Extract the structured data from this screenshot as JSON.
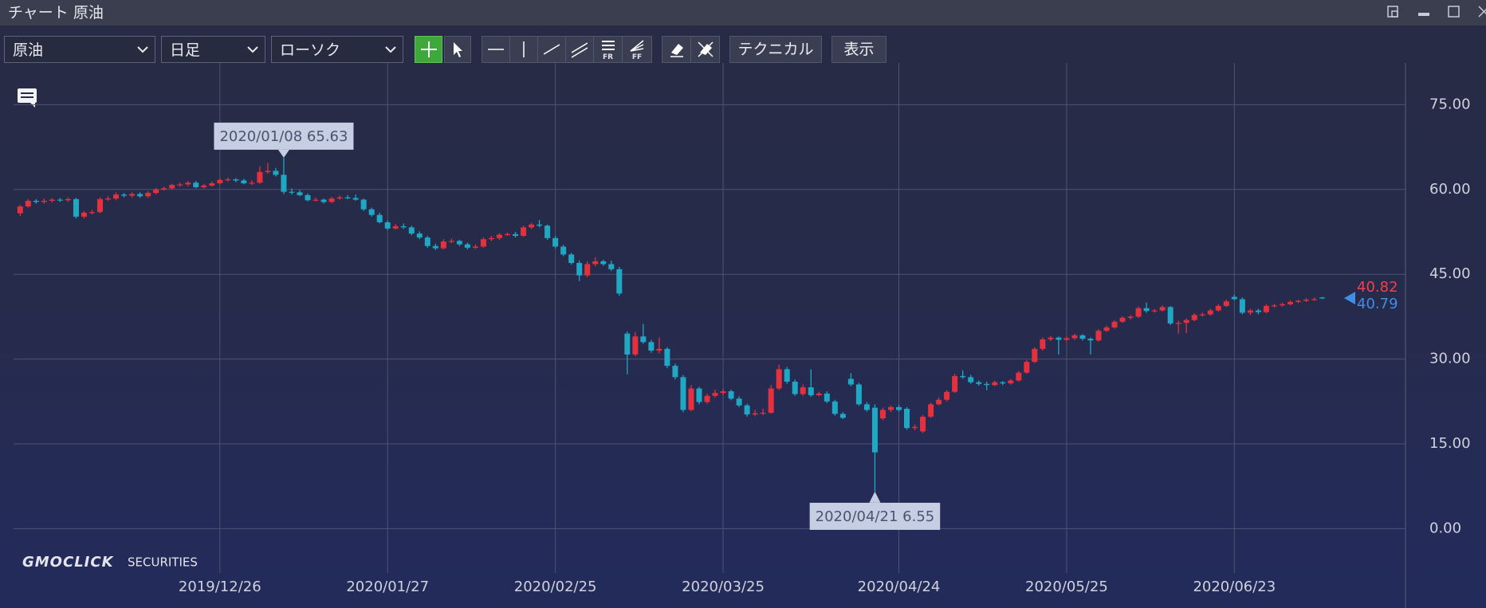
{
  "window": {
    "title": "チャート 原油"
  },
  "toolbar": {
    "symbol": "原油",
    "period": "日足",
    "chart_style": "ローソク",
    "fibo_labels": [
      "FR",
      "FF"
    ],
    "technical": "テクニカル",
    "display": "表示"
  },
  "logo": {
    "brand": "GMOCLICK",
    "suffix": "SECURITIES"
  },
  "chart_data": {
    "type": "candlestick",
    "categories": [
      "2019/11/20",
      "2019/11/21",
      "2019/11/22",
      "2019/11/25",
      "2019/11/26",
      "2019/11/27",
      "2019/11/28",
      "2019/11/29",
      "2019/12/02",
      "2019/12/03",
      "2019/12/04",
      "2019/12/05",
      "2019/12/06",
      "2019/12/09",
      "2019/12/10",
      "2019/12/11",
      "2019/12/12",
      "2019/12/13",
      "2019/12/16",
      "2019/12/17",
      "2019/12/18",
      "2019/12/19",
      "2019/12/20",
      "2019/12/23",
      "2019/12/24",
      "2019/12/26",
      "2019/12/27",
      "2019/12/30",
      "2019/12/31",
      "2020/01/02",
      "2020/01/03",
      "2020/01/06",
      "2020/01/07",
      "2020/01/08",
      "2020/01/09",
      "2020/01/10",
      "2020/01/13",
      "2020/01/14",
      "2020/01/15",
      "2020/01/16",
      "2020/01/17",
      "2020/01/20",
      "2020/01/21",
      "2020/01/22",
      "2020/01/23",
      "2020/01/24",
      "2020/01/27",
      "2020/01/28",
      "2020/01/29",
      "2020/01/30",
      "2020/01/31",
      "2020/02/03",
      "2020/02/04",
      "2020/02/05",
      "2020/02/06",
      "2020/02/07",
      "2020/02/10",
      "2020/02/11",
      "2020/02/12",
      "2020/02/13",
      "2020/02/14",
      "2020/02/17",
      "2020/02/18",
      "2020/02/19",
      "2020/02/20",
      "2020/02/21",
      "2020/02/24",
      "2020/02/25",
      "2020/02/26",
      "2020/02/27",
      "2020/02/28",
      "2020/03/02",
      "2020/03/03",
      "2020/03/04",
      "2020/03/05",
      "2020/03/06",
      "2020/03/09",
      "2020/03/10",
      "2020/03/11",
      "2020/03/12",
      "2020/03/13",
      "2020/03/16",
      "2020/03/17",
      "2020/03/18",
      "2020/03/19",
      "2020/03/20",
      "2020/03/23",
      "2020/03/24",
      "2020/03/25",
      "2020/03/26",
      "2020/03/27",
      "2020/03/30",
      "2020/03/31",
      "2020/04/01",
      "2020/04/02",
      "2020/04/03",
      "2020/04/06",
      "2020/04/07",
      "2020/04/08",
      "2020/04/09",
      "2020/04/10",
      "2020/04/13",
      "2020/04/14",
      "2020/04/15",
      "2020/04/16",
      "2020/04/17",
      "2020/04/20",
      "2020/04/21",
      "2020/04/22",
      "2020/04/23",
      "2020/04/24",
      "2020/04/27",
      "2020/04/28",
      "2020/04/29",
      "2020/04/30",
      "2020/05/01",
      "2020/05/04",
      "2020/05/05",
      "2020/05/06",
      "2020/05/07",
      "2020/05/08",
      "2020/05/11",
      "2020/05/12",
      "2020/05/13",
      "2020/05/14",
      "2020/05/15",
      "2020/05/18",
      "2020/05/19",
      "2020/05/20",
      "2020/05/21",
      "2020/05/22",
      "2020/05/25",
      "2020/05/26",
      "2020/05/27",
      "2020/05/28",
      "2020/05/29",
      "2020/06/01",
      "2020/06/02",
      "2020/06/03",
      "2020/06/04",
      "2020/06/05",
      "2020/06/08",
      "2020/06/09",
      "2020/06/10",
      "2020/06/11",
      "2020/06/12",
      "2020/06/15",
      "2020/06/16",
      "2020/06/17",
      "2020/06/18",
      "2020/06/19",
      "2020/06/22",
      "2020/06/23",
      "2020/06/24",
      "2020/06/25",
      "2020/06/26",
      "2020/06/29",
      "2020/06/30",
      "2020/07/01",
      "2020/07/02",
      "2020/07/03",
      "2020/07/06",
      "2020/07/07",
      "2020/07/08"
    ],
    "open": [
      55.8,
      57.0,
      58.0,
      57.8,
      58.0,
      58.2,
      58.1,
      58.3,
      55.2,
      55.9,
      56.0,
      58.3,
      58.4,
      59.1,
      58.9,
      59.2,
      58.8,
      59.4,
      60.0,
      60.2,
      60.8,
      60.9,
      61.2,
      60.4,
      60.7,
      61.1,
      61.7,
      61.8,
      61.6,
      61.1,
      61.2,
      63.1,
      63.3,
      62.6,
      59.6,
      59.5,
      59.0,
      58.1,
      58.2,
      57.8,
      58.4,
      58.6,
      58.5,
      58.2,
      56.5,
      55.5,
      54.2,
      53.1,
      53.5,
      53.3,
      52.2,
      51.5,
      50.0,
      49.6,
      50.8,
      50.9,
      50.3,
      49.7,
      49.9,
      51.2,
      51.4,
      52.0,
      52.1,
      51.8,
      53.3,
      53.8,
      53.6,
      51.4,
      49.9,
      48.5,
      47.0,
      44.8,
      46.8,
      47.3,
      46.8,
      45.9,
      34.5,
      30.8,
      34.0,
      33.0,
      31.5,
      31.8,
      28.8,
      26.8,
      21.0,
      24.8,
      22.4,
      23.5,
      24.0,
      24.3,
      23.0,
      21.8,
      20.2,
      20.4,
      20.5,
      24.8,
      28.2,
      26.0,
      23.8,
      25.0,
      23.6,
      23.9,
      22.5,
      20.3,
      26.5,
      25.5,
      22.0,
      21.4,
      19.5,
      21.0,
      21.5,
      21.2,
      17.8,
      17.2,
      19.8,
      22.0,
      22.8,
      24.2,
      27.0,
      26.8,
      25.9,
      25.6,
      25.4,
      25.9,
      25.7,
      26.2,
      27.6,
      29.5,
      31.8,
      33.5,
      33.8,
      33.4,
      33.7,
      34.2,
      33.6,
      33.3,
      35.0,
      35.6,
      36.6,
      37.3,
      37.5,
      39.0,
      38.5,
      38.6,
      39.2,
      36.3,
      36.4,
      36.9,
      37.8,
      37.9,
      38.6,
      39.4,
      41.0,
      40.6,
      38.2,
      38.6,
      38.3,
      39.4,
      39.5,
      39.7,
      40.1,
      40.3,
      40.5,
      40.9
    ],
    "high": [
      57.3,
      58.3,
      58.3,
      58.4,
      58.5,
      58.5,
      58.6,
      58.5,
      56.2,
      56.4,
      58.6,
      58.8,
      59.5,
      59.4,
      59.5,
      59.5,
      59.7,
      60.3,
      60.5,
      61.0,
      61.2,
      61.5,
      61.5,
      61.0,
      61.4,
      62.0,
      62.1,
      62.0,
      61.9,
      61.6,
      64.1,
      64.7,
      63.8,
      65.63,
      60.2,
      59.9,
      59.3,
      58.6,
      58.4,
      58.7,
      58.9,
      59.0,
      59.1,
      58.4,
      56.8,
      55.9,
      54.5,
      53.9,
      54.0,
      53.6,
      52.6,
      51.8,
      50.4,
      51.2,
      51.3,
      51.1,
      50.6,
      50.3,
      51.5,
      51.8,
      52.3,
      52.4,
      52.5,
      53.6,
      54.1,
      54.6,
      53.8,
      51.8,
      50.2,
      48.8,
      47.4,
      47.3,
      48.0,
      47.6,
      47.4,
      46.3,
      34.9,
      34.8,
      36.2,
      33.4,
      33.8,
      32.1,
      29.2,
      27.2,
      25.4,
      25.1,
      23.9,
      24.6,
      24.8,
      24.6,
      23.4,
      22.1,
      21.0,
      21.2,
      25.4,
      29.0,
      28.6,
      26.4,
      25.5,
      28.2,
      24.2,
      24.3,
      22.8,
      20.6,
      27.5,
      25.8,
      22.4,
      22.0,
      21.4,
      21.8,
      21.9,
      21.5,
      18.4,
      20.1,
      22.3,
      23.2,
      24.5,
      27.4,
      28.0,
      27.2,
      26.2,
      26.0,
      26.2,
      26.1,
      26.5,
      27.9,
      29.8,
      32.1,
      33.8,
      34.1,
      34.0,
      34.0,
      34.5,
      34.4,
      33.8,
      35.3,
      35.9,
      36.9,
      37.6,
      37.8,
      39.3,
      40.0,
      38.9,
      39.5,
      39.4,
      36.8,
      37.2,
      38.1,
      38.2,
      38.9,
      39.7,
      40.5,
      41.4,
      40.9,
      38.9,
      38.9,
      39.7,
      39.8,
      40.0,
      40.4,
      40.5,
      40.8,
      40.9,
      41.0
    ],
    "low": [
      55.3,
      56.8,
      57.5,
      57.5,
      57.7,
      57.8,
      57.8,
      54.9,
      54.9,
      55.6,
      55.8,
      58.0,
      58.1,
      58.6,
      58.6,
      58.5,
      58.5,
      59.1,
      59.8,
      60.0,
      60.5,
      60.6,
      60.2,
      60.2,
      60.5,
      60.9,
      61.4,
      61.3,
      60.9,
      60.8,
      61.0,
      62.8,
      62.3,
      59.2,
      59.1,
      58.8,
      57.9,
      57.9,
      57.5,
      57.6,
      58.2,
      58.3,
      58.0,
      56.2,
      55.2,
      54.0,
      52.8,
      52.9,
      53.0,
      51.9,
      51.2,
      49.7,
      49.3,
      49.4,
      50.5,
      50.0,
      49.4,
      49.5,
      49.7,
      50.9,
      51.1,
      51.8,
      51.5,
      51.6,
      53.0,
      53.3,
      51.1,
      49.6,
      48.2,
      46.7,
      43.8,
      44.5,
      46.4,
      46.5,
      45.6,
      41.2,
      27.3,
      30.5,
      32.7,
      31.1,
      31.0,
      28.4,
      26.4,
      20.6,
      20.8,
      22.0,
      22.1,
      23.2,
      23.6,
      22.7,
      21.5,
      19.8,
      19.9,
      20.1,
      20.3,
      24.5,
      25.6,
      23.5,
      23.5,
      23.3,
      23.4,
      22.2,
      20.0,
      19.4,
      25.2,
      21.7,
      20.7,
      6.55,
      19.2,
      20.6,
      20.7,
      17.5,
      17.4,
      16.9,
      19.6,
      21.8,
      22.5,
      24.0,
      26.5,
      25.6,
      25.3,
      24.5,
      25.2,
      25.4,
      25.5,
      26.0,
      27.4,
      29.3,
      31.5,
      33.2,
      30.8,
      33.2,
      33.4,
      33.3,
      30.8,
      33.1,
      34.8,
      35.4,
      36.4,
      37.0,
      37.3,
      38.2,
      38.2,
      38.4,
      36.0,
      34.5,
      34.6,
      36.7,
      37.5,
      37.7,
      38.4,
      39.2,
      40.4,
      37.9,
      37.8,
      37.9,
      38.1,
      39.1,
      39.3,
      39.5,
      39.9,
      40.1,
      40.3,
      40.6
    ],
    "close": [
      57.0,
      58.0,
      57.8,
      58.0,
      58.2,
      58.1,
      58.3,
      55.2,
      55.9,
      56.0,
      58.3,
      58.4,
      59.1,
      58.9,
      59.2,
      58.8,
      59.4,
      60.0,
      60.2,
      60.8,
      60.9,
      61.2,
      60.4,
      60.7,
      61.1,
      61.7,
      61.8,
      61.6,
      61.1,
      61.2,
      63.1,
      63.3,
      62.6,
      59.6,
      59.5,
      59.0,
      58.1,
      58.2,
      57.8,
      58.4,
      58.6,
      58.5,
      58.2,
      56.5,
      55.5,
      54.2,
      53.1,
      53.5,
      53.3,
      52.2,
      51.5,
      50.0,
      49.6,
      50.8,
      50.9,
      50.3,
      49.7,
      49.9,
      51.2,
      51.4,
      52.0,
      52.1,
      51.8,
      53.3,
      53.8,
      53.6,
      51.4,
      49.9,
      48.5,
      47.0,
      44.8,
      46.8,
      47.3,
      46.8,
      45.9,
      41.6,
      30.8,
      34.0,
      33.0,
      31.5,
      31.8,
      28.8,
      26.8,
      21.0,
      24.8,
      22.4,
      23.5,
      24.0,
      24.3,
      23.0,
      21.8,
      20.2,
      20.4,
      20.5,
      24.8,
      28.2,
      26.0,
      23.8,
      25.0,
      23.6,
      23.9,
      22.5,
      20.3,
      19.6,
      25.5,
      22.0,
      21.0,
      13.5,
      21.0,
      21.5,
      21.0,
      17.8,
      18.0,
      19.8,
      22.0,
      22.8,
      24.2,
      27.0,
      26.8,
      25.9,
      25.6,
      25.4,
      25.9,
      25.7,
      26.2,
      27.6,
      29.5,
      31.8,
      33.5,
      33.8,
      33.4,
      33.7,
      34.2,
      33.6,
      33.3,
      35.0,
      35.6,
      36.6,
      37.3,
      37.5,
      39.0,
      38.5,
      38.6,
      39.2,
      36.3,
      36.4,
      36.9,
      37.8,
      37.9,
      38.6,
      39.4,
      40.2,
      40.6,
      38.2,
      38.6,
      38.3,
      39.4,
      39.5,
      39.7,
      40.1,
      40.3,
      40.5,
      40.6,
      40.79
    ],
    "up_color": "#e5313d",
    "down_color": "#1fa7c4",
    "ylim": [
      -7.84,
      80.98
    ],
    "yticks": [
      {
        "value": 0,
        "label": "0.00"
      },
      {
        "value": 15,
        "label": "15.00"
      },
      {
        "value": 30,
        "label": "30.00"
      },
      {
        "value": 45,
        "label": "45.00"
      },
      {
        "value": 60,
        "label": "60.00"
      },
      {
        "value": 75,
        "label": "75.00"
      }
    ],
    "xticks": [
      "2019/12/26",
      "2020/01/27",
      "2020/02/25",
      "2020/03/25",
      "2020/04/24",
      "2020/05/25",
      "2020/06/23"
    ],
    "grid": true,
    "annotations": [
      {
        "date": "2020/01/08",
        "value": 65.63
      },
      {
        "date": "2020/04/21",
        "value": 6.55
      }
    ],
    "last_prices": [
      {
        "value": 40.82,
        "color": "#f0414c"
      },
      {
        "value": 40.79,
        "color": "#3f8ee8"
      }
    ]
  }
}
